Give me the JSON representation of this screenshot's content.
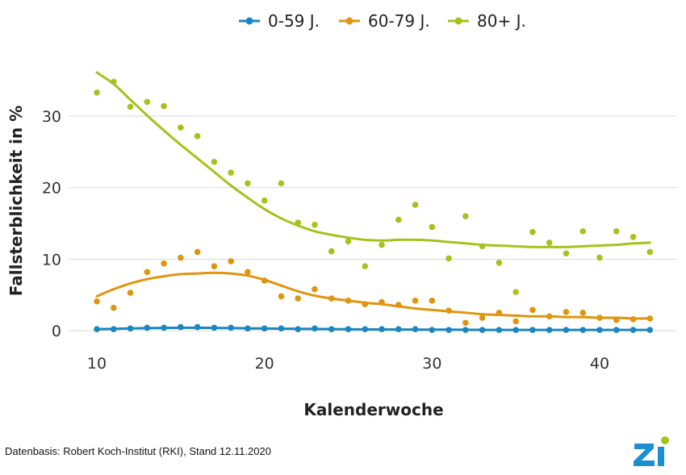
{
  "chart_data": {
    "type": "scatter",
    "subtype": "scatter with smoothed trend lines",
    "xlabel": "Kalenderwoche",
    "ylabel": "Fallsterblichkeit in %",
    "xlim": [
      9,
      44
    ],
    "ylim": [
      -1,
      38
    ],
    "xticks": [
      10,
      20,
      30,
      40
    ],
    "yticks": [
      0,
      10,
      20,
      30
    ],
    "grid": "horizontal",
    "legend_position": "top-center",
    "x": [
      10,
      11,
      12,
      13,
      14,
      15,
      16,
      17,
      18,
      19,
      20,
      21,
      22,
      23,
      24,
      25,
      26,
      27,
      28,
      29,
      30,
      31,
      32,
      33,
      34,
      35,
      36,
      37,
      38,
      39,
      40,
      41,
      42,
      43
    ],
    "series": [
      {
        "name": "0-59 J.",
        "color": "#1a86c0",
        "values": [
          0.2,
          0.2,
          0.3,
          0.4,
          0.4,
          0.5,
          0.5,
          0.4,
          0.4,
          0.3,
          0.3,
          0.3,
          0.2,
          0.3,
          0.2,
          0.2,
          0.2,
          0.2,
          0.2,
          0.2,
          0.1,
          0.1,
          0.1,
          0.1,
          0.1,
          0.1,
          0.1,
          0.1,
          0.1,
          0.1,
          0.1,
          0.1,
          0.1,
          0.1
        ],
        "trend": [
          0.2,
          0.25,
          0.3,
          0.35,
          0.38,
          0.4,
          0.4,
          0.38,
          0.36,
          0.33,
          0.3,
          0.28,
          0.26,
          0.24,
          0.22,
          0.2,
          0.18,
          0.17,
          0.16,
          0.15,
          0.14,
          0.13,
          0.12,
          0.11,
          0.1,
          0.1,
          0.1,
          0.1,
          0.1,
          0.1,
          0.1,
          0.1,
          0.1,
          0.1
        ]
      },
      {
        "name": "60-79 J.",
        "color": "#e0950f",
        "values": [
          4.1,
          3.2,
          5.3,
          8.2,
          9.4,
          10.2,
          11.0,
          9.0,
          9.7,
          8.2,
          7.0,
          4.8,
          4.5,
          5.8,
          4.5,
          4.2,
          3.7,
          4.0,
          3.6,
          4.2,
          4.2,
          2.8,
          1.1,
          1.8,
          2.5,
          1.3,
          2.9,
          2.0,
          2.6,
          2.5,
          1.8,
          1.5,
          1.6,
          1.7
        ],
        "trend": [
          4.8,
          5.8,
          6.6,
          7.2,
          7.6,
          7.9,
          8.0,
          8.1,
          8.0,
          7.7,
          7.1,
          6.3,
          5.5,
          4.9,
          4.5,
          4.2,
          3.9,
          3.7,
          3.4,
          3.1,
          2.9,
          2.7,
          2.5,
          2.3,
          2.2,
          2.1,
          2.0,
          2.0,
          1.9,
          1.9,
          1.8,
          1.8,
          1.7,
          1.7
        ]
      },
      {
        "name": "80+ J.",
        "color": "#a2c41c",
        "values": [
          33.3,
          34.8,
          31.3,
          32.0,
          31.4,
          28.4,
          27.2,
          23.6,
          22.1,
          20.6,
          18.2,
          20.6,
          15.1,
          14.8,
          11.1,
          12.5,
          9.0,
          12.0,
          15.5,
          17.6,
          14.5,
          10.1,
          16.0,
          11.8,
          9.5,
          5.4,
          13.8,
          12.3,
          10.8,
          13.9,
          10.2,
          13.9,
          13.1,
          11.0
        ],
        "trend": [
          36.1,
          34.5,
          32.3,
          30.1,
          28.0,
          26.0,
          24.1,
          22.2,
          20.3,
          18.6,
          17.0,
          15.7,
          14.7,
          13.9,
          13.4,
          13.0,
          12.7,
          12.6,
          12.7,
          12.7,
          12.6,
          12.4,
          12.2,
          12.0,
          11.9,
          11.8,
          11.7,
          11.7,
          11.7,
          11.8,
          11.9,
          12.0,
          12.2,
          12.3
        ]
      }
    ]
  },
  "footer": {
    "source": "Datenbasis: Robert Koch-Institut (RKI), Stand 12.11.2020",
    "logo_text": "Zi",
    "logo_color": "#1b8fd0",
    "logo_dot_color": "#a2c41c"
  }
}
